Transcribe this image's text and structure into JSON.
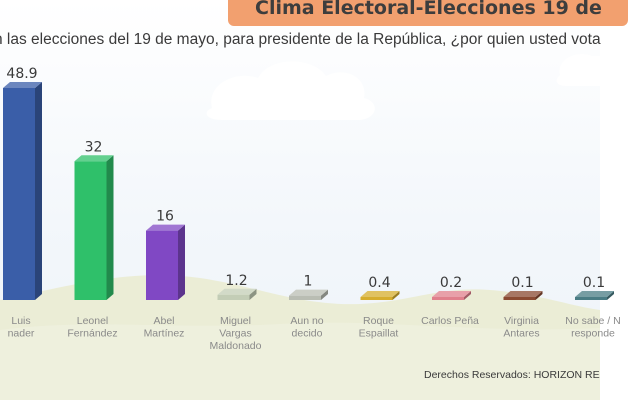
{
  "title": "Clima Electoral-Elecciones 19 de",
  "question": "n las elecciones del 19 de mayo, para presidente de la República, ¿por quien usted vota",
  "footer": "Derechos Reservados: HORIZON RE",
  "colors": {
    "title_bg": "#f2a06f",
    "title_text": "#3d3d3d",
    "text": "#3a3a3a",
    "label": "#8a8a8a",
    "ground": "#eaecd2"
  },
  "chart_data": {
    "type": "bar",
    "title": "Clima Electoral-Elecciones 19 de",
    "subtitle": "n las elecciones del 19 de mayo, para presidente de la República, ¿por quien usted vota",
    "categories": [
      [
        "Luis",
        "nader"
      ],
      [
        "Leonel",
        "Fernández"
      ],
      [
        "Abel",
        "Martínez"
      ],
      [
        "Miguel",
        "Vargas",
        "Maldonado"
      ],
      [
        "Aun no",
        "decido"
      ],
      [
        "Roque",
        "Espaillat"
      ],
      [
        "Carlos Peña"
      ],
      [
        "Virginia",
        "Antares"
      ],
      [
        "No sabe / N",
        "responde"
      ]
    ],
    "values": [
      48.9,
      32,
      16,
      1.2,
      1,
      0.4,
      0.2,
      0.1,
      0.1
    ],
    "value_labels": [
      "48.9",
      "32",
      "16",
      "1.2",
      "1",
      "0.4",
      "0.2",
      "0.1",
      "0.1"
    ],
    "colors": [
      "#3a5ea8",
      "#2fc06a",
      "#8048c4",
      "#c3cdb6",
      "#b9bdb3",
      "#d6ad2e",
      "#e0808c",
      "#8a4a32",
      "#4a7c84"
    ],
    "ylim": [
      0,
      48.9
    ],
    "grid": false,
    "legend": "none"
  }
}
